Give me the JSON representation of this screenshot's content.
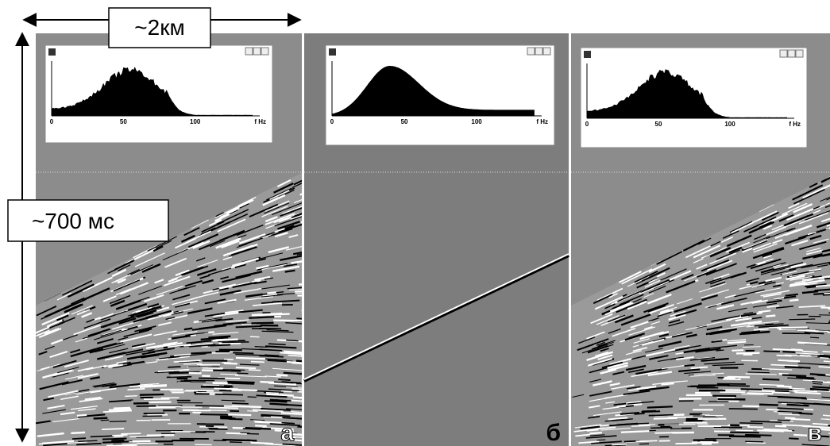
{
  "scale": {
    "horizontal": "~2км",
    "vertical": "~700 мс"
  },
  "panels": [
    {
      "label": "а",
      "spectrum": {
        "ticks": [
          0,
          50,
          100
        ],
        "axis_label": "f Hz"
      }
    },
    {
      "label": "б",
      "spectrum": {
        "ticks": [
          0,
          50,
          100
        ],
        "axis_label": "f Hz"
      }
    },
    {
      "label": "в",
      "spectrum": {
        "ticks": [
          0,
          50,
          100
        ],
        "axis_label": "f Hz"
      }
    }
  ]
}
